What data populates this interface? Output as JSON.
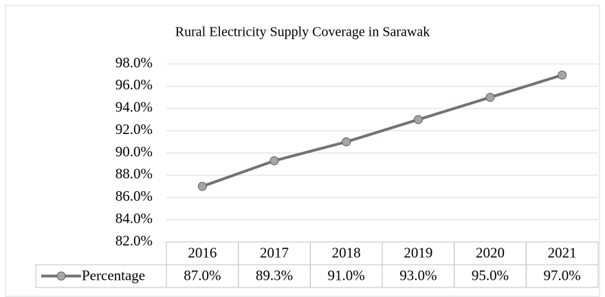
{
  "chart_data": {
    "type": "line",
    "title": "Rural Electricity Supply Coverage in Sarawak",
    "categories": [
      "2016",
      "2017",
      "2018",
      "2019",
      "2020",
      "2021"
    ],
    "series": [
      {
        "name": "Percentage",
        "color": "#767171",
        "marker_color": "#a6a6a6",
        "values": [
          87.0,
          89.3,
          91.0,
          93.0,
          95.0,
          97.0
        ],
        "value_labels": [
          "87.0%",
          "89.3%",
          "91.0%",
          "93.0%",
          "95.0%",
          "97.0%"
        ]
      }
    ],
    "ylim": [
      82,
      98
    ],
    "yticks": [
      {
        "value": 82,
        "label": "82.0%"
      },
      {
        "value": 84,
        "label": "84.0%"
      },
      {
        "value": 86,
        "label": "86.0%"
      },
      {
        "value": 88,
        "label": "88.0%"
      },
      {
        "value": 90,
        "label": "90.0%"
      },
      {
        "value": 92,
        "label": "92.0%"
      },
      {
        "value": 94,
        "label": "94.0%"
      },
      {
        "value": 96,
        "label": "96.0%"
      },
      {
        "value": 98,
        "label": "98.0%"
      }
    ],
    "grid": true,
    "data_table": true
  }
}
